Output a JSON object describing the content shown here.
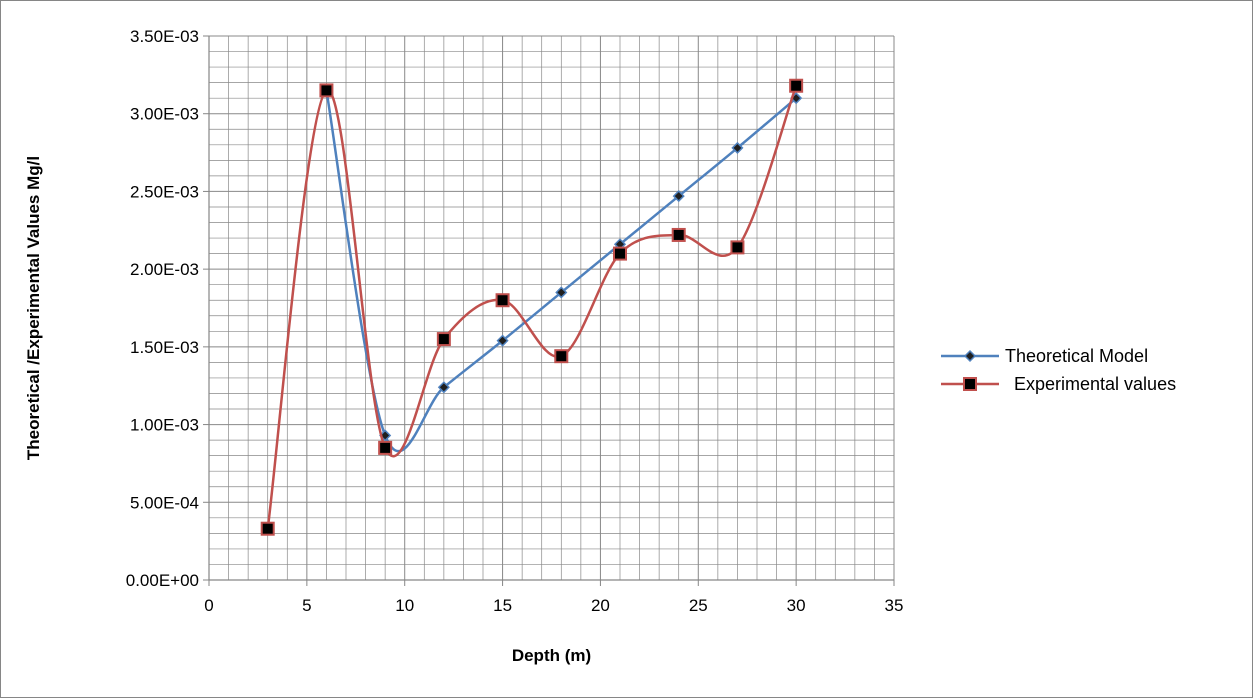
{
  "chart_data": {
    "type": "line",
    "title": "",
    "xlabel": "Depth (m)",
    "ylabel": "Theoretical /Experimental Values Mg/l",
    "xlim": [
      0,
      35
    ],
    "ylim": [
      0,
      0.0035
    ],
    "x_ticks": [
      {
        "value": 0,
        "label": "0"
      },
      {
        "value": 5,
        "label": "5"
      },
      {
        "value": 10,
        "label": "10"
      },
      {
        "value": 15,
        "label": "15"
      },
      {
        "value": 20,
        "label": "20"
      },
      {
        "value": 25,
        "label": "25"
      },
      {
        "value": 30,
        "label": "30"
      },
      {
        "value": 35,
        "label": "35"
      }
    ],
    "y_ticks": [
      {
        "value": 0,
        "label": "0.00E+00"
      },
      {
        "value": 0.0005,
        "label": "5.00E-04"
      },
      {
        "value": 0.001,
        "label": "1.00E-03"
      },
      {
        "value": 0.0015,
        "label": "1.50E-03"
      },
      {
        "value": 0.002,
        "label": "2.00E-03"
      },
      {
        "value": 0.0025,
        "label": "2.50E-03"
      },
      {
        "value": 0.003,
        "label": "3.00E-03"
      },
      {
        "value": 0.0035,
        "label": "3.50E-03"
      }
    ],
    "grid": true,
    "smooth": true,
    "legend_position": "right",
    "series": [
      {
        "name": "Theoretical Model",
        "color": "#4F81BD",
        "marker": "diamond",
        "x": [
          6,
          9,
          12,
          15,
          18,
          21,
          24,
          27,
          30
        ],
        "values": [
          0.00315,
          0.00093,
          0.00124,
          0.00154,
          0.00185,
          0.00216,
          0.00247,
          0.00278,
          0.0031
        ]
      },
      {
        "name": "Experimental values",
        "color": "#C0504D",
        "marker": "square",
        "x": [
          3,
          6,
          9,
          12,
          15,
          18,
          21,
          24,
          27,
          30
        ],
        "values": [
          0.00033,
          0.00315,
          0.00085,
          0.00155,
          0.0018,
          0.00144,
          0.0021,
          0.00222,
          0.00214,
          0.00318
        ]
      }
    ]
  }
}
